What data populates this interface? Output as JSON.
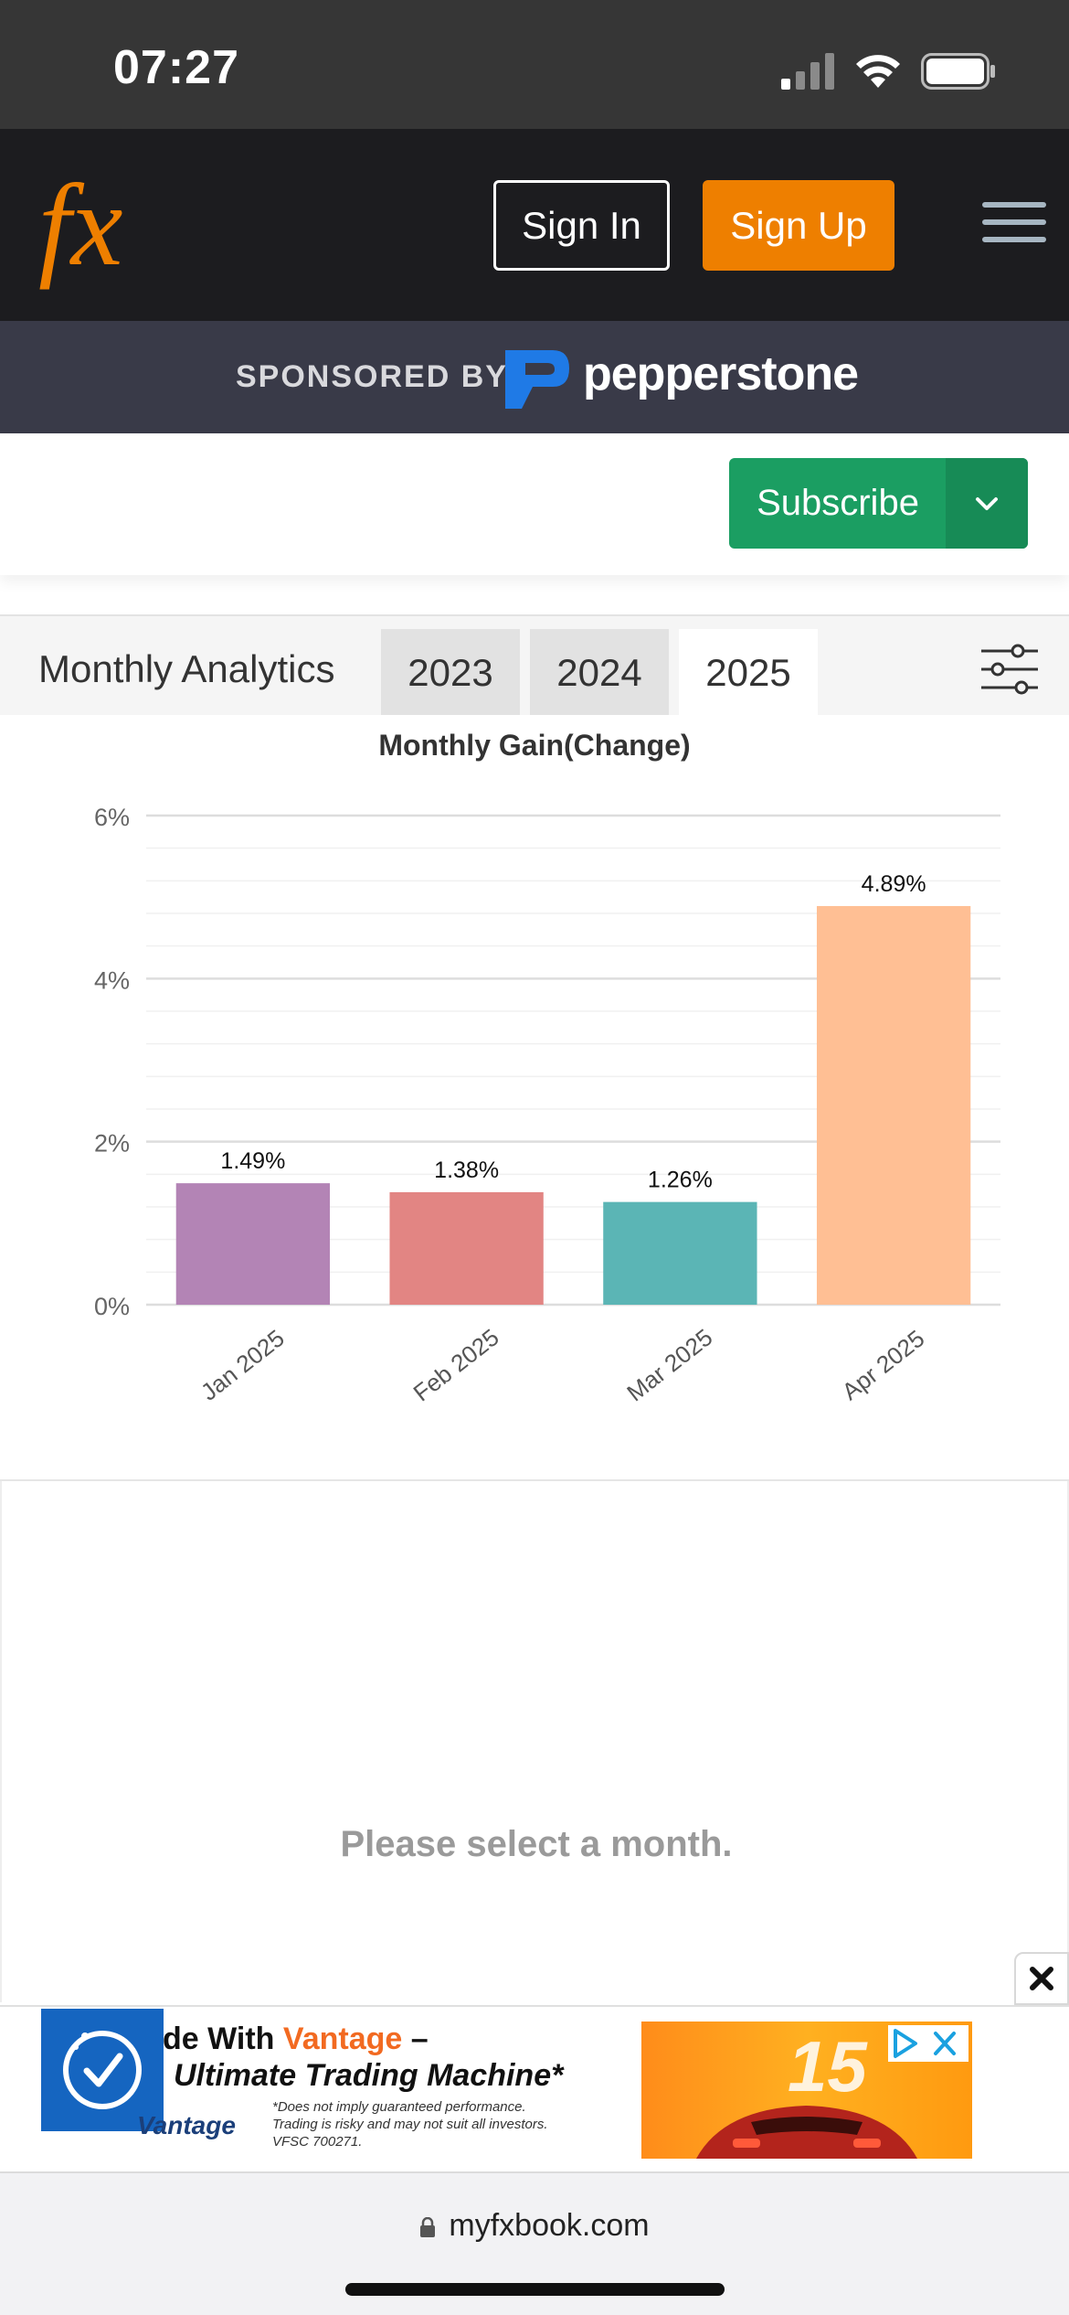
{
  "status_bar": {
    "time": "07:27"
  },
  "header": {
    "logo_text": "fx",
    "sign_in_label": "Sign In",
    "sign_up_label": "Sign Up",
    "brand_color": "#ee7f00"
  },
  "sponsor": {
    "label": "SPONSORED BY",
    "name": "pepperstone"
  },
  "subscribe": {
    "label": "Subscribe",
    "color": "#1b9e62"
  },
  "analytics": {
    "title": "Monthly Analytics",
    "tabs": [
      {
        "label": "2023",
        "active": false
      },
      {
        "label": "2024",
        "active": false
      },
      {
        "label": "2025",
        "active": true
      }
    ]
  },
  "chart_data": {
    "type": "bar",
    "title": "Monthly Gain(Change)",
    "categories": [
      "Jan 2025",
      "Feb 2025",
      "Mar 2025",
      "Apr 2025"
    ],
    "values": [
      1.49,
      1.38,
      1.26,
      4.89
    ],
    "value_labels": [
      "1.49%",
      "1.38%",
      "1.26%",
      "4.89%"
    ],
    "colors": [
      "#b384b5",
      "#e28583",
      "#5bb5b5",
      "#ffbf94"
    ],
    "yticks": [
      0,
      2,
      4,
      6
    ],
    "ytick_labels": [
      "0%",
      "2%",
      "4%",
      "6%"
    ],
    "ylim": [
      0,
      6
    ],
    "xlabel": "",
    "ylabel": "",
    "grid": true
  },
  "month_panel": {
    "message": "Please select a month."
  },
  "ad": {
    "line1_prefix": "de With ",
    "line1_brand": "Vantage",
    "line1_suffix": " –",
    "line2": "Ultimate Trading Machine*",
    "brand_name": "Vantage",
    "disclaimer_1": "*Does not imply guaranteed performance.",
    "disclaimer_2": "Trading is risky and may not suit all investors.",
    "disclaimer_3": "VFSC 700271."
  },
  "browser": {
    "url": "myfxbook.com"
  }
}
